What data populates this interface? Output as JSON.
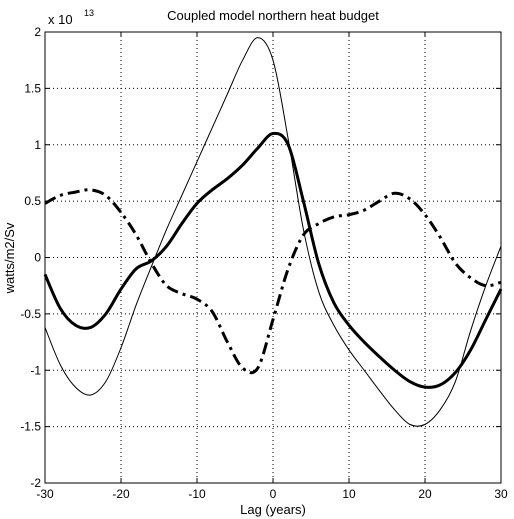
{
  "chart_data": {
    "type": "line",
    "title": "Coupled model northern heat budget",
    "xlabel": "Lag (years)",
    "ylabel": "watts/m2/Sv",
    "y_exponent_prefix": "x 10",
    "y_exponent": "13",
    "xlim": [
      -30,
      30
    ],
    "ylim": [
      -2,
      2
    ],
    "xticks": [
      -30,
      -20,
      -10,
      0,
      10,
      20,
      30
    ],
    "yticks": [
      -2,
      -1.5,
      -1,
      -0.5,
      0,
      0.5,
      1,
      1.5,
      2
    ],
    "xtick_labels": [
      "-30",
      "-20",
      "-10",
      "0",
      "10",
      "20",
      "30"
    ],
    "ytick_labels": [
      "-2",
      "-1.5",
      "-1",
      "-0.5",
      "0",
      "0.5",
      "1",
      "1.5",
      "2"
    ],
    "grid": true,
    "series": [
      {
        "style": "thin-solid",
        "x": [
          -30,
          -28,
          -26,
          -24,
          -22,
          -20,
          -18,
          -16,
          -14,
          -12,
          -10,
          -8,
          -6,
          -4,
          -2,
          0,
          2,
          4,
          6,
          8,
          10,
          12,
          14,
          16,
          18,
          20,
          22,
          24,
          26,
          28,
          30
        ],
        "y": [
          -0.62,
          -0.95,
          -1.15,
          -1.22,
          -1.1,
          -0.8,
          -0.42,
          -0.08,
          0.25,
          0.55,
          0.85,
          1.15,
          1.45,
          1.75,
          1.95,
          1.75,
          1.05,
          0.25,
          -0.3,
          -0.6,
          -0.82,
          -1.0,
          -1.18,
          -1.35,
          -1.48,
          -1.48,
          -1.35,
          -1.1,
          -0.65,
          -0.25,
          0.1
        ]
      },
      {
        "style": "thick-solid",
        "x": [
          -30,
          -28,
          -26,
          -24,
          -22,
          -20,
          -18,
          -16,
          -14,
          -12,
          -10,
          -8,
          -6,
          -4,
          -2,
          0,
          2,
          4,
          6,
          8,
          10,
          12,
          14,
          16,
          18,
          20,
          22,
          24,
          26,
          28,
          30
        ],
        "y": [
          -0.15,
          -0.45,
          -0.6,
          -0.62,
          -0.5,
          -0.28,
          -0.1,
          -0.03,
          0.1,
          0.3,
          0.48,
          0.6,
          0.7,
          0.82,
          0.97,
          1.1,
          1.0,
          0.5,
          -0.05,
          -0.4,
          -0.6,
          -0.75,
          -0.88,
          -1.0,
          -1.1,
          -1.15,
          -1.13,
          -1.02,
          -0.82,
          -0.55,
          -0.28
        ]
      },
      {
        "style": "thick-dashdot",
        "x": [
          -30,
          -28,
          -26,
          -24,
          -22,
          -20,
          -18,
          -16,
          -14,
          -12,
          -10,
          -8,
          -6,
          -4,
          -2,
          0,
          2,
          4,
          6,
          8,
          10,
          12,
          14,
          16,
          18,
          20,
          22,
          24,
          26,
          28,
          30
        ],
        "y": [
          0.48,
          0.55,
          0.58,
          0.6,
          0.55,
          0.4,
          0.2,
          -0.05,
          -0.25,
          -0.32,
          -0.37,
          -0.48,
          -0.75,
          -0.98,
          -0.98,
          -0.55,
          -0.1,
          0.2,
          0.3,
          0.36,
          0.38,
          0.42,
          0.5,
          0.57,
          0.52,
          0.38,
          0.18,
          -0.05,
          -0.18,
          -0.25,
          -0.22
        ]
      }
    ]
  }
}
